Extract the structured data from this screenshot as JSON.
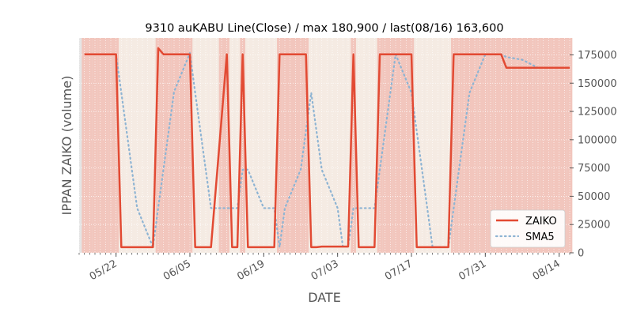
{
  "chart_data": {
    "type": "line",
    "title": "9310 auKABU Line(Close) / max 180,900 / last(08/16) 163,600",
    "xlabel": "DATE",
    "ylabel": "IPPAN ZAIKO (volume)",
    "ylim": [
      0,
      190000
    ],
    "xlim": [
      "2023-05-15",
      "2023-08-16"
    ],
    "grid": true,
    "yaxis_side": "right",
    "legend_position": "bottom-right",
    "x_ticks": [
      {
        "date": "2023-05-22",
        "label": "05/22"
      },
      {
        "date": "2023-06-05",
        "label": "06/05"
      },
      {
        "date": "2023-06-19",
        "label": "06/19"
      },
      {
        "date": "2023-07-03",
        "label": "07/03"
      },
      {
        "date": "2023-07-17",
        "label": "07/17"
      },
      {
        "date": "2023-07-31",
        "label": "07/31"
      },
      {
        "date": "2023-08-14",
        "label": "08/14"
      }
    ],
    "y_ticks": [
      {
        "value": 0,
        "label": "0"
      },
      {
        "value": 25000,
        "label": "25000"
      },
      {
        "value": 50000,
        "label": "50000"
      },
      {
        "value": 75000,
        "label": "75000"
      },
      {
        "value": 100000,
        "label": "100000"
      },
      {
        "value": 125000,
        "label": "125000"
      },
      {
        "value": 150000,
        "label": "150000"
      },
      {
        "value": 175000,
        "label": "175000"
      }
    ],
    "colors": {
      "zaiko": "#e24a33",
      "sma5": "#8eb4d3",
      "high_band": "#f2c6bd",
      "low_band": "#f5ebe3",
      "grid": "#ffffff"
    },
    "band_threshold": 100000,
    "series": [
      {
        "name": "ZAIKO",
        "style": "solid",
        "points": [
          [
            "2023-05-16",
            175500
          ],
          [
            "2023-05-17",
            175500
          ],
          [
            "2023-05-18",
            175500
          ],
          [
            "2023-05-19",
            175500
          ],
          [
            "2023-05-22",
            175500
          ],
          [
            "2023-05-23",
            5000
          ],
          [
            "2023-05-24",
            5000
          ],
          [
            "2023-05-25",
            5000
          ],
          [
            "2023-05-26",
            5000
          ],
          [
            "2023-05-29",
            5000
          ],
          [
            "2023-05-30",
            180900
          ],
          [
            "2023-05-31",
            175500
          ],
          [
            "2023-06-01",
            175500
          ],
          [
            "2023-06-02",
            175500
          ],
          [
            "2023-06-05",
            175500
          ],
          [
            "2023-06-06",
            5000
          ],
          [
            "2023-06-07",
            5000
          ],
          [
            "2023-06-08",
            5000
          ],
          [
            "2023-06-09",
            5000
          ],
          [
            "2023-06-12",
            175500
          ],
          [
            "2023-06-13",
            5000
          ],
          [
            "2023-06-14",
            5000
          ],
          [
            "2023-06-15",
            175500
          ],
          [
            "2023-06-16",
            5000
          ],
          [
            "2023-06-19",
            5000
          ],
          [
            "2023-06-20",
            5000
          ],
          [
            "2023-06-21",
            5000
          ],
          [
            "2023-06-22",
            175500
          ],
          [
            "2023-06-23",
            175500
          ],
          [
            "2023-06-26",
            175500
          ],
          [
            "2023-06-27",
            175500
          ],
          [
            "2023-06-28",
            5000
          ],
          [
            "2023-06-29",
            5000
          ],
          [
            "2023-06-30",
            5500
          ],
          [
            "2023-07-03",
            5500
          ],
          [
            "2023-07-04",
            5500
          ],
          [
            "2023-07-05",
            5500
          ],
          [
            "2023-07-06",
            175500
          ],
          [
            "2023-07-07",
            5000
          ],
          [
            "2023-07-10",
            5000
          ],
          [
            "2023-07-11",
            175500
          ],
          [
            "2023-07-12",
            175500
          ],
          [
            "2023-07-13",
            175500
          ],
          [
            "2023-07-14",
            175500
          ],
          [
            "2023-07-17",
            175500
          ],
          [
            "2023-07-18",
            5000
          ],
          [
            "2023-07-19",
            5000
          ],
          [
            "2023-07-20",
            5000
          ],
          [
            "2023-07-21",
            5000
          ],
          [
            "2023-07-24",
            5000
          ],
          [
            "2023-07-25",
            175500
          ],
          [
            "2023-07-26",
            175500
          ],
          [
            "2023-07-27",
            175500
          ],
          [
            "2023-07-28",
            175500
          ],
          [
            "2023-07-31",
            175500
          ],
          [
            "2023-08-01",
            175500
          ],
          [
            "2023-08-02",
            175500
          ],
          [
            "2023-08-03",
            175500
          ],
          [
            "2023-08-04",
            163600
          ],
          [
            "2023-08-07",
            163600
          ],
          [
            "2023-08-08",
            163600
          ],
          [
            "2023-08-09",
            163600
          ],
          [
            "2023-08-10",
            163600
          ],
          [
            "2023-08-11",
            163600
          ],
          [
            "2023-08-14",
            163600
          ],
          [
            "2023-08-15",
            163600
          ],
          [
            "2023-08-16",
            163600
          ]
        ]
      },
      {
        "name": "SMA5",
        "style": "dotted",
        "points": [
          [
            "2023-05-22",
            175500
          ],
          [
            "2023-05-23",
            141500
          ],
          [
            "2023-05-24",
            107500
          ],
          [
            "2023-05-25",
            73500
          ],
          [
            "2023-05-26",
            39500
          ],
          [
            "2023-05-29",
            5000
          ],
          [
            "2023-05-30",
            40200
          ],
          [
            "2023-05-31",
            74300
          ],
          [
            "2023-06-01",
            108400
          ],
          [
            "2023-06-02",
            142500
          ],
          [
            "2023-06-05",
            176600
          ],
          [
            "2023-06-06",
            141500
          ],
          [
            "2023-06-07",
            107500
          ],
          [
            "2023-06-08",
            73500
          ],
          [
            "2023-06-09",
            39500
          ],
          [
            "2023-06-12",
            39500
          ],
          [
            "2023-06-13",
            39500
          ],
          [
            "2023-06-14",
            39500
          ],
          [
            "2023-06-15",
            73500
          ],
          [
            "2023-06-16",
            73500
          ],
          [
            "2023-06-19",
            39500
          ],
          [
            "2023-06-20",
            39500
          ],
          [
            "2023-06-21",
            39500
          ],
          [
            "2023-06-22",
            5000
          ],
          [
            "2023-06-23",
            39500
          ],
          [
            "2023-06-26",
            73500
          ],
          [
            "2023-06-27",
            107500
          ],
          [
            "2023-06-28",
            141500
          ],
          [
            "2023-06-29",
            107500
          ],
          [
            "2023-06-30",
            73500
          ],
          [
            "2023-07-03",
            39500
          ],
          [
            "2023-07-04",
            5500
          ],
          [
            "2023-07-05",
            5500
          ],
          [
            "2023-07-06",
            39500
          ],
          [
            "2023-07-07",
            39500
          ],
          [
            "2023-07-10",
            39500
          ],
          [
            "2023-07-11",
            73500
          ],
          [
            "2023-07-12",
            107500
          ],
          [
            "2023-07-13",
            141500
          ],
          [
            "2023-07-14",
            175500
          ],
          [
            "2023-07-17",
            141500
          ],
          [
            "2023-07-18",
            107500
          ],
          [
            "2023-07-19",
            73500
          ],
          [
            "2023-07-20",
            39500
          ],
          [
            "2023-07-21",
            5000
          ],
          [
            "2023-07-24",
            5000
          ],
          [
            "2023-07-25",
            39100
          ],
          [
            "2023-07-26",
            73200
          ],
          [
            "2023-07-27",
            107300
          ],
          [
            "2023-07-28",
            141400
          ],
          [
            "2023-07-31",
            175500
          ],
          [
            "2023-08-01",
            175500
          ],
          [
            "2023-08-02",
            175500
          ],
          [
            "2023-08-03",
            175500
          ],
          [
            "2023-08-04",
            173100
          ],
          [
            "2023-08-07",
            170700
          ],
          [
            "2023-08-08",
            168400
          ],
          [
            "2023-08-09",
            166000
          ],
          [
            "2023-08-10",
            163600
          ],
          [
            "2023-08-11",
            163600
          ],
          [
            "2023-08-14",
            163600
          ],
          [
            "2023-08-15",
            163600
          ],
          [
            "2023-08-16",
            163600
          ]
        ]
      }
    ]
  }
}
